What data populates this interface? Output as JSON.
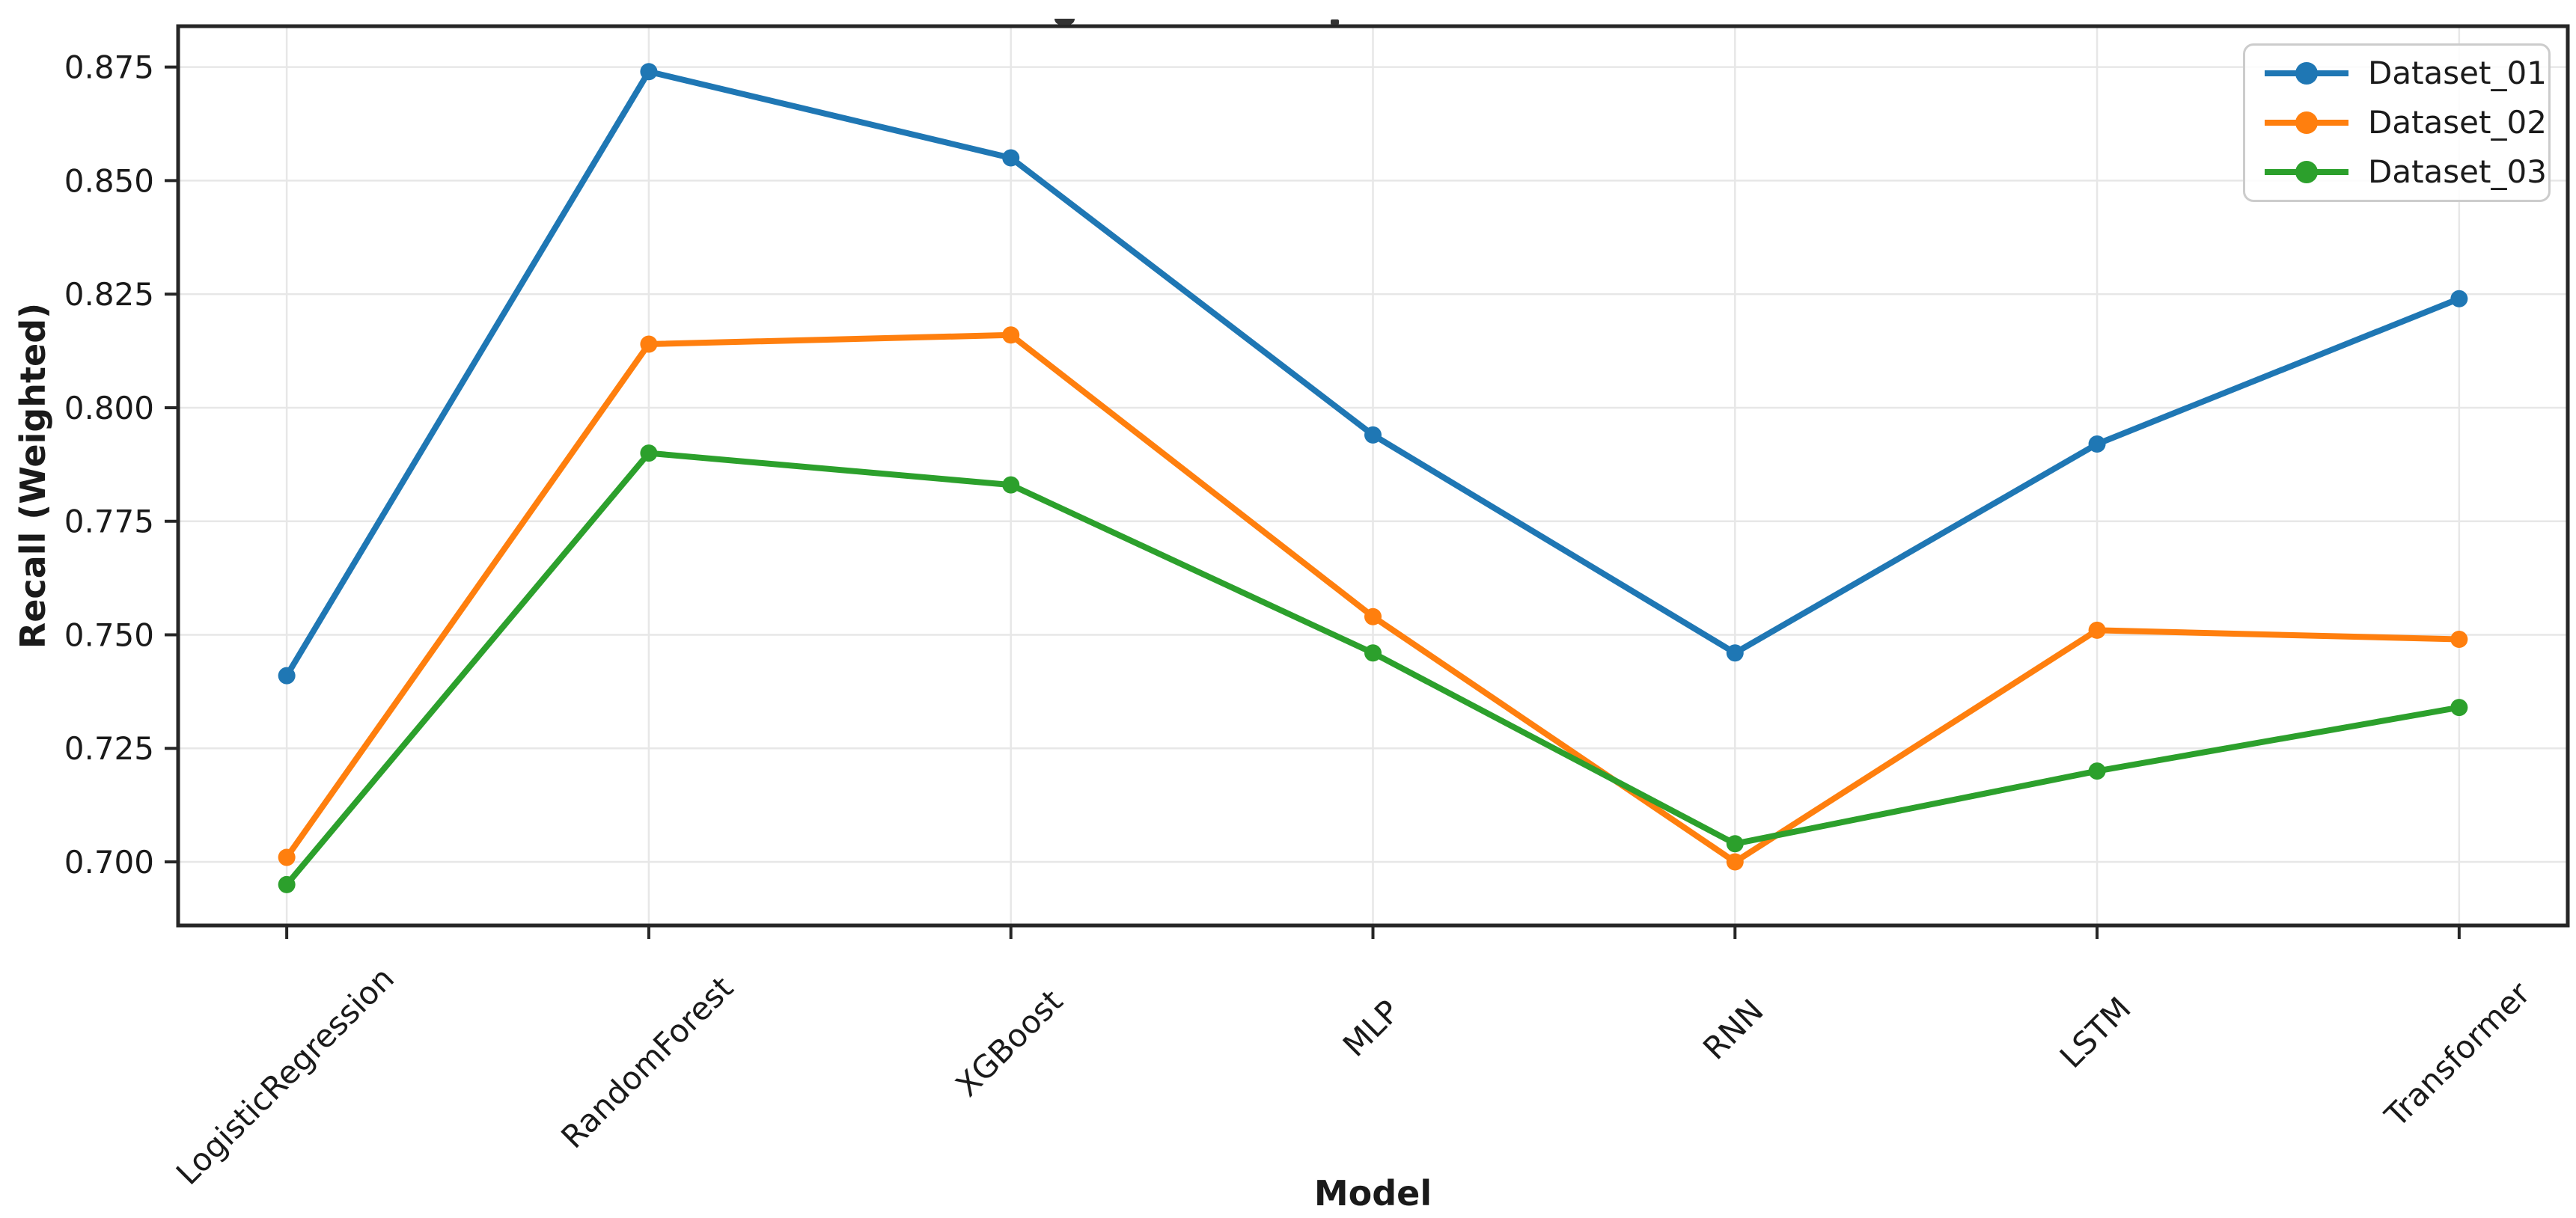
{
  "chart_data": {
    "type": "line",
    "title": "",
    "title_clipped": true,
    "xlabel": "Model",
    "ylabel": "Recall (Weighted)",
    "categories": [
      "LogisticRegression",
      "RandomForest",
      "XGBoost",
      "MLP",
      "RNN",
      "LSTM",
      "Transformer"
    ],
    "series": [
      {
        "name": "Dataset_01",
        "color": "#1f77b4",
        "values": [
          0.741,
          0.874,
          0.855,
          0.794,
          0.746,
          0.792,
          0.824
        ]
      },
      {
        "name": "Dataset_02",
        "color": "#ff7f0e",
        "values": [
          0.701,
          0.814,
          0.816,
          0.754,
          0.7,
          0.751,
          0.749
        ]
      },
      {
        "name": "Dataset_03",
        "color": "#2ca02c",
        "values": [
          0.695,
          0.79,
          0.783,
          0.746,
          0.704,
          0.72,
          0.734
        ]
      }
    ],
    "yticks": [
      0.7,
      0.725,
      0.75,
      0.775,
      0.8,
      0.825,
      0.85,
      0.875
    ],
    "ytick_labels": [
      "0.700",
      "0.725",
      "0.750",
      "0.775",
      "0.800",
      "0.825",
      "0.850",
      "0.875"
    ],
    "ylim": [
      0.686,
      0.884
    ],
    "x_margin_frac": 0.3,
    "grid": true,
    "legend": {
      "position": "upper right",
      "entries": [
        "Dataset_01",
        "Dataset_02",
        "Dataset_03"
      ]
    },
    "colors": {
      "grid": "#e7e7e7",
      "spine": "#262626",
      "tick_text": "#1a1a1a",
      "background": "#ffffff"
    }
  }
}
